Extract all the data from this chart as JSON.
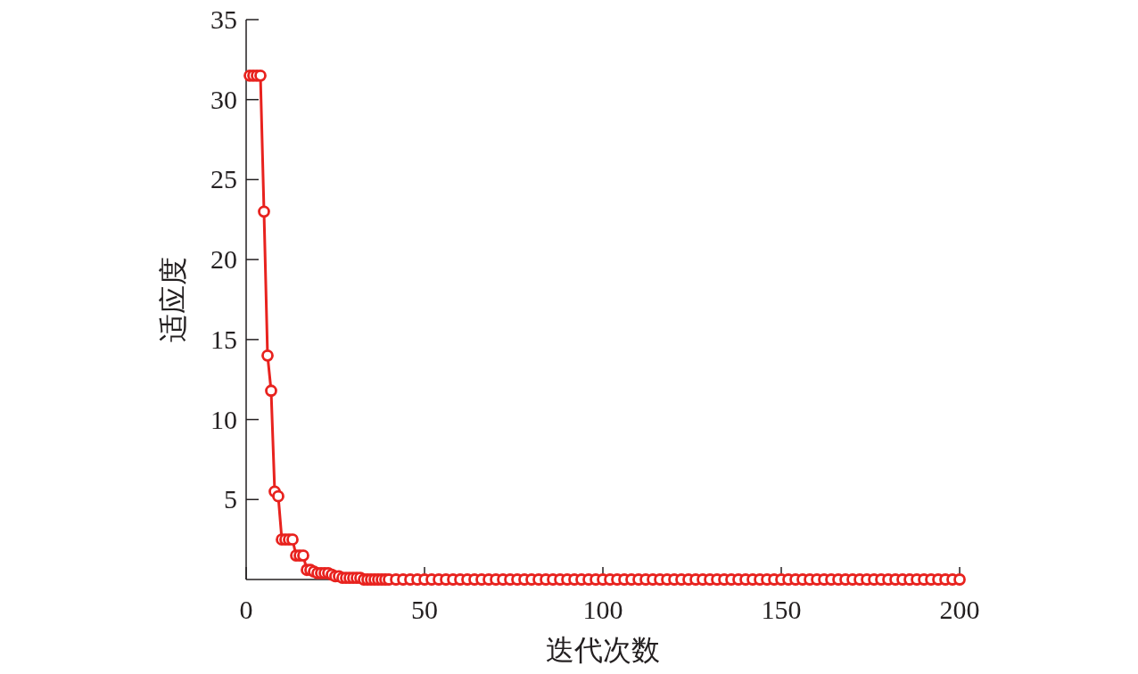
{
  "chart_data": {
    "type": "line",
    "xlabel": "迭代次数",
    "ylabel": "适应度",
    "xlim": [
      0,
      200
    ],
    "ylim": [
      0,
      35
    ],
    "xticks": [
      0,
      50,
      100,
      150,
      200
    ],
    "yticks": [
      5,
      10,
      15,
      20,
      25,
      30,
      35
    ],
    "grid": false,
    "marker": "circle",
    "line_style": "solid",
    "series": [
      {
        "color": "#e8221e",
        "x": [
          1,
          2,
          3,
          4,
          5,
          6,
          7,
          8,
          9,
          10,
          11,
          12,
          13,
          14,
          15,
          16,
          17,
          18,
          19,
          20,
          21,
          22,
          23,
          24,
          25,
          26,
          27,
          28,
          29,
          30,
          31,
          32,
          33,
          34,
          35,
          36,
          37,
          38,
          39,
          40,
          42,
          44,
          46,
          48,
          50,
          52,
          54,
          56,
          58,
          60,
          62,
          64,
          66,
          68,
          70,
          72,
          74,
          76,
          78,
          80,
          82,
          84,
          86,
          88,
          90,
          92,
          94,
          96,
          98,
          100,
          102,
          104,
          106,
          108,
          110,
          112,
          114,
          116,
          118,
          120,
          122,
          124,
          126,
          128,
          130,
          132,
          134,
          136,
          138,
          140,
          142,
          144,
          146,
          148,
          150,
          152,
          154,
          156,
          158,
          160,
          162,
          164,
          166,
          168,
          170,
          172,
          174,
          176,
          178,
          180,
          182,
          184,
          186,
          188,
          190,
          192,
          194,
          196,
          198,
          200
        ],
        "values": [
          31.5,
          31.5,
          31.5,
          31.5,
          23,
          14,
          11.8,
          5.5,
          5.2,
          2.5,
          2.5,
          2.5,
          2.5,
          1.5,
          1.5,
          1.5,
          0.6,
          0.6,
          0.5,
          0.4,
          0.4,
          0.4,
          0.4,
          0.3,
          0.2,
          0.2,
          0.1,
          0.1,
          0.1,
          0.1,
          0.1,
          0.1,
          0,
          0,
          0,
          0,
          0,
          0,
          0,
          0,
          0,
          0,
          0,
          0,
          0,
          0,
          0,
          0,
          0,
          0,
          0,
          0,
          0,
          0,
          0,
          0,
          0,
          0,
          0,
          0,
          0,
          0,
          0,
          0,
          0,
          0,
          0,
          0,
          0,
          0,
          0,
          0,
          0,
          0,
          0,
          0,
          0,
          0,
          0,
          0,
          0,
          0,
          0,
          0,
          0,
          0,
          0,
          0,
          0,
          0,
          0,
          0,
          0,
          0,
          0,
          0,
          0,
          0,
          0,
          0,
          0,
          0,
          0,
          0,
          0,
          0,
          0,
          0,
          0,
          0,
          0,
          0,
          0,
          0,
          0,
          0,
          0,
          0,
          0,
          0
        ]
      }
    ]
  }
}
